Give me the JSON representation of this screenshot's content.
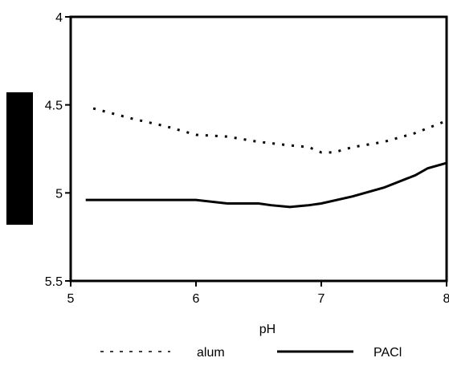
{
  "chart_data": {
    "type": "line",
    "xlabel": "pH",
    "ylabel": "",
    "xlim": [
      5,
      8
    ],
    "ylim": [
      4,
      5.5
    ],
    "y_inverted": true,
    "x_ticks": [
      "5",
      "6",
      "7",
      "8"
    ],
    "y_ticks": [
      "4",
      "4.5",
      "5",
      "5.5"
    ],
    "grid": false,
    "legend_position": "bottom",
    "series": [
      {
        "name": "alum",
        "style": "dotted",
        "color": "#000000",
        "x": [
          5.18,
          5.5,
          5.75,
          6.0,
          6.25,
          6.5,
          6.75,
          6.9,
          7.0,
          7.1,
          7.25,
          7.5,
          7.75,
          8.0
        ],
        "y": [
          4.52,
          4.58,
          4.62,
          4.67,
          4.68,
          4.71,
          4.73,
          4.74,
          4.77,
          4.77,
          4.74,
          4.71,
          4.66,
          4.59
        ]
      },
      {
        "name": "PACl",
        "style": "solid",
        "color": "#000000",
        "x": [
          5.12,
          5.5,
          6.0,
          6.25,
          6.5,
          6.6,
          6.75,
          6.9,
          7.0,
          7.25,
          7.5,
          7.75,
          7.85,
          8.0
        ],
        "y": [
          5.04,
          5.04,
          5.04,
          5.06,
          5.06,
          5.07,
          5.08,
          5.07,
          5.06,
          5.02,
          4.97,
          4.9,
          4.86,
          4.83
        ]
      }
    ]
  },
  "colors": {
    "axis_label_block": "#000000"
  }
}
